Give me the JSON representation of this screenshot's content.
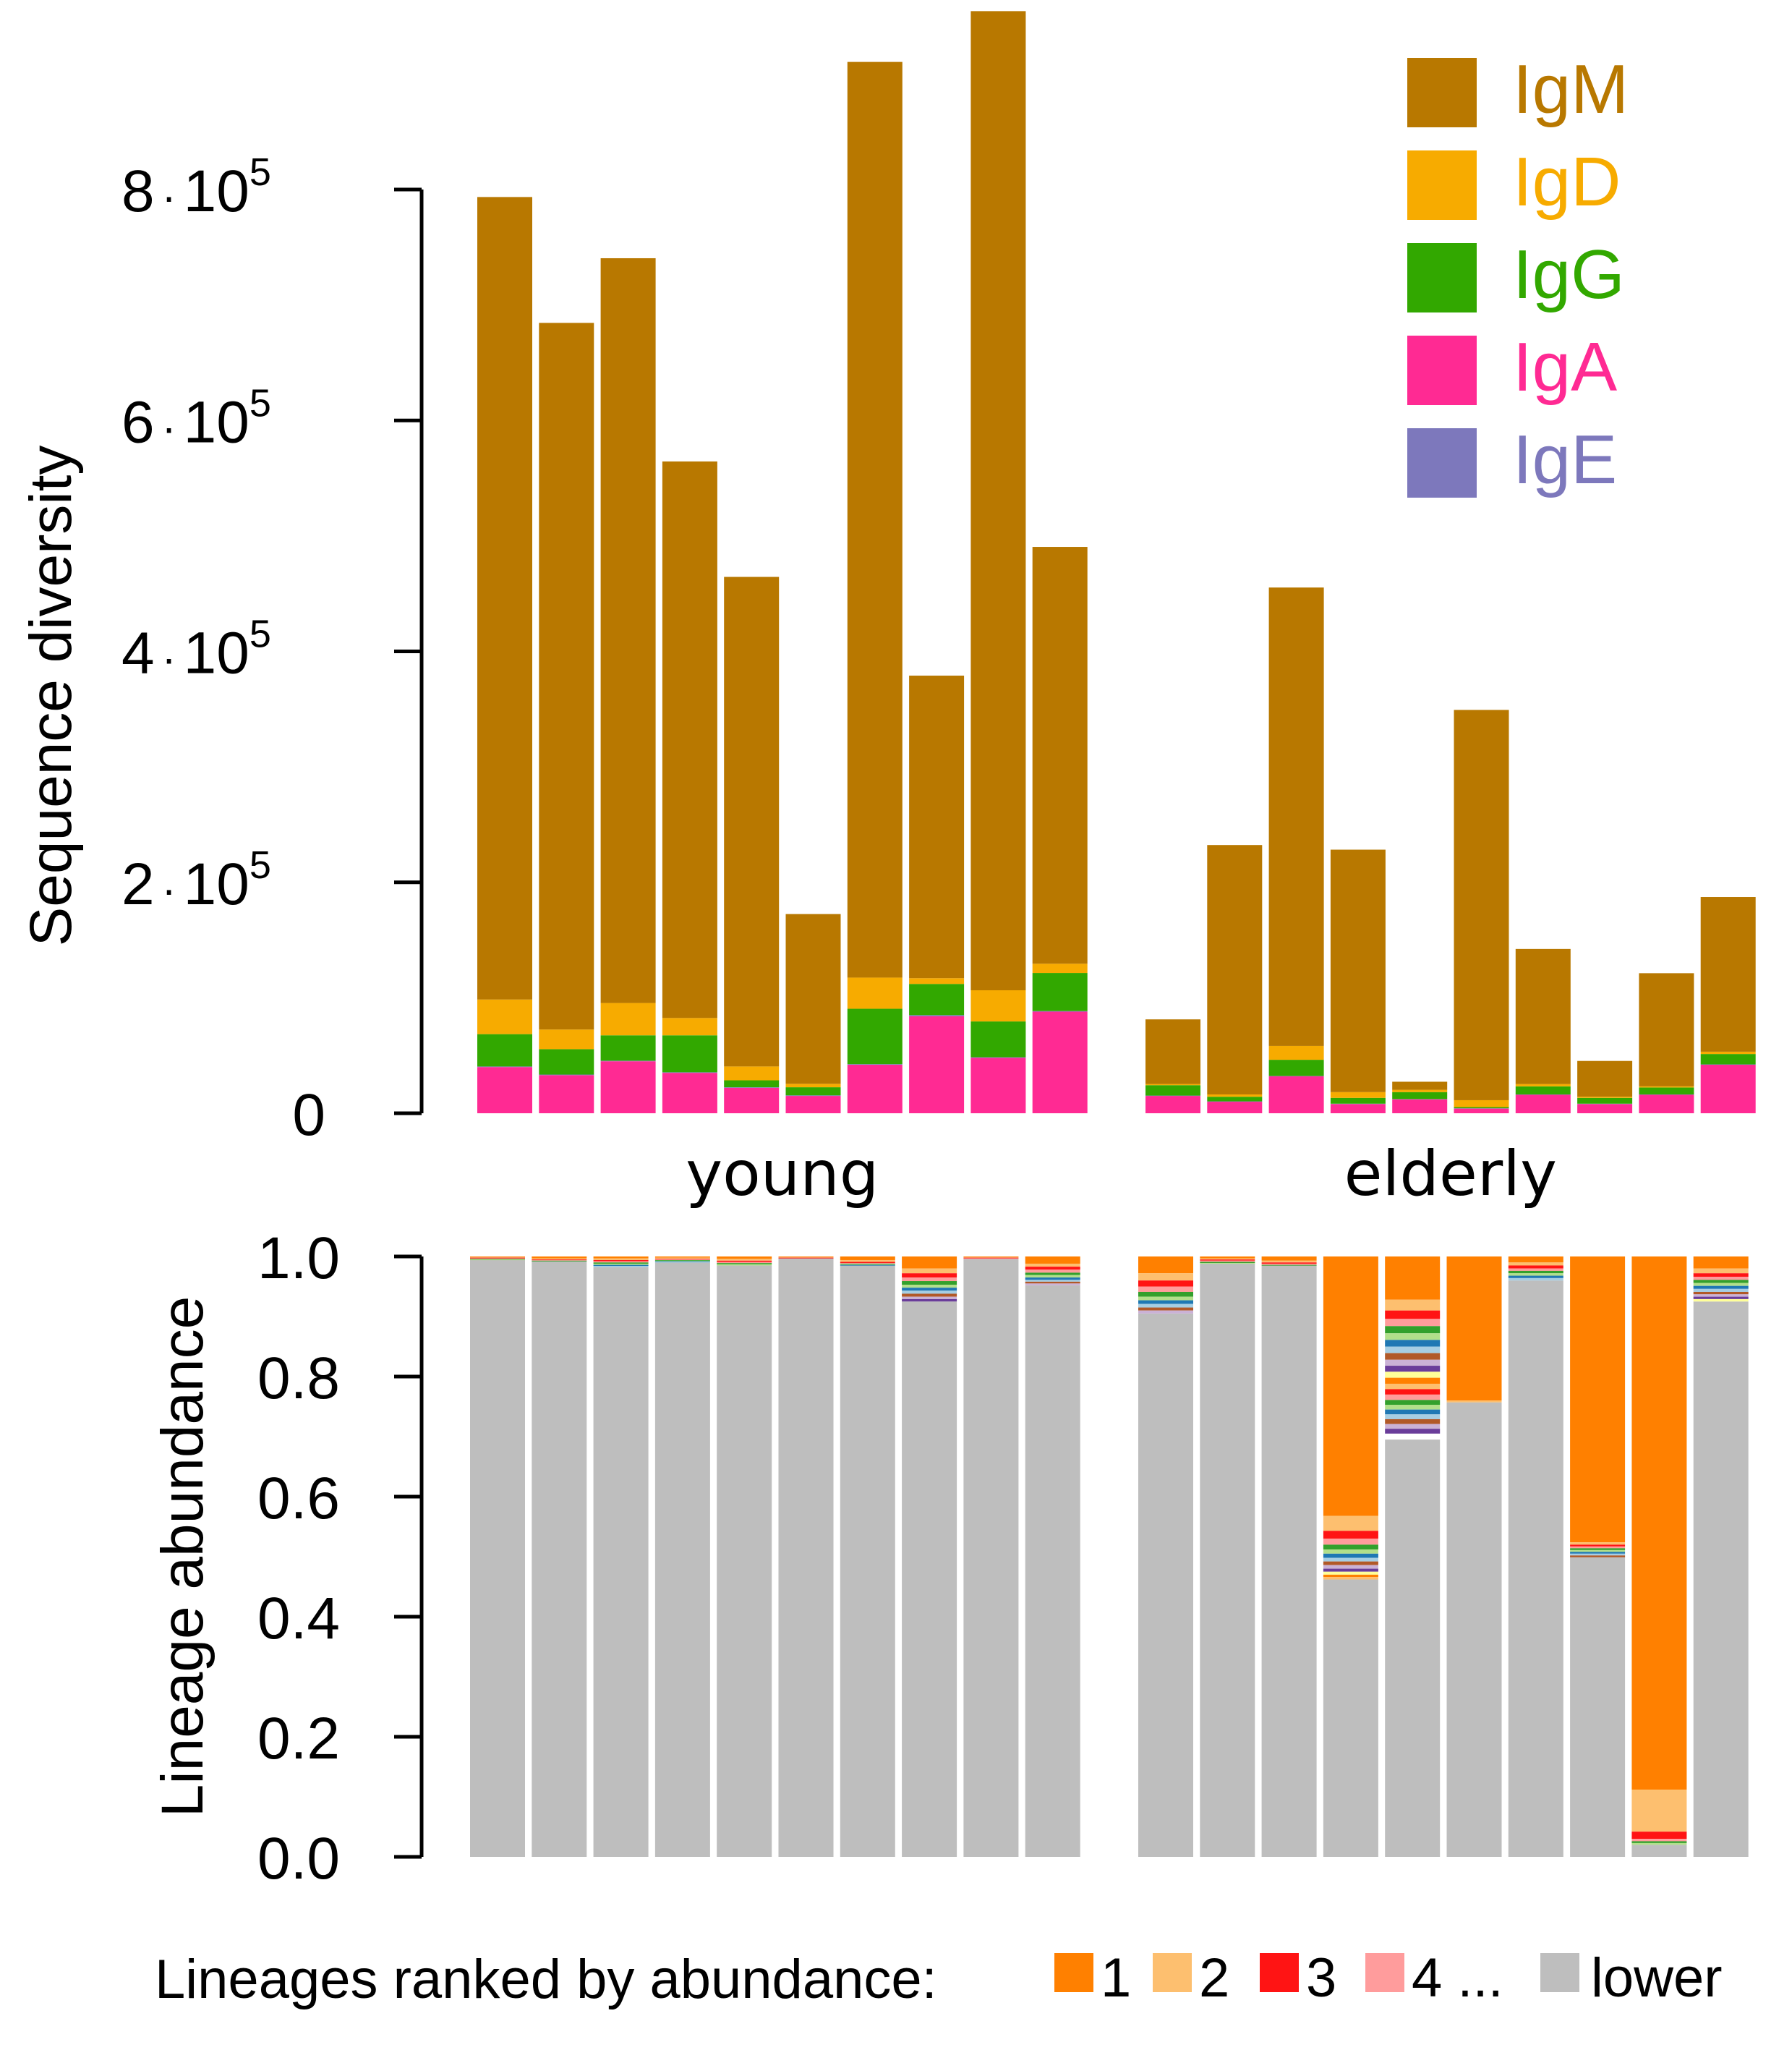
{
  "chart_data": [
    {
      "type": "bar",
      "stacked": true,
      "ylabel": "Sequence diversity",
      "ylim": [
        0,
        950000
      ],
      "yticks": [
        {
          "value": 0,
          "label": "0"
        },
        {
          "value": 200000,
          "mant": "2",
          "exp": "5"
        },
        {
          "value": 400000,
          "mant": "4",
          "exp": "5"
        },
        {
          "value": 600000,
          "mant": "6",
          "exp": "5"
        },
        {
          "value": 800000,
          "mant": "8",
          "exp": "5"
        }
      ],
      "tick_base": "10",
      "groups": [
        {
          "label": "young",
          "start": 0,
          "count": 10
        },
        {
          "label": "elderly",
          "start": 10,
          "count": 10
        }
      ],
      "legend_position": "top-right",
      "series": [
        {
          "name": "IgA",
          "color": "#ff2a93",
          "values": [
            40000,
            33000,
            45000,
            35000,
            22000,
            15000,
            42000,
            84000,
            48000,
            88000,
            15000,
            10000,
            32000,
            8000,
            12000,
            4000,
            16000,
            8000,
            16000,
            42000
          ]
        },
        {
          "name": "IgE",
          "color": "#7d78bc",
          "values": [
            500,
            500,
            500,
            500,
            500,
            500,
            500,
            1000,
            500,
            500,
            300,
            300,
            300,
            300,
            300,
            300,
            300,
            300,
            300,
            300
          ]
        },
        {
          "name": "IgG",
          "color": "#32a800",
          "values": [
            28000,
            22000,
            22000,
            32000,
            6000,
            7000,
            48000,
            27000,
            31000,
            33000,
            9000,
            4000,
            14000,
            5000,
            6000,
            1000,
            7000,
            5000,
            6000,
            9000
          ]
        },
        {
          "name": "IgD",
          "color": "#f7ab00",
          "values": [
            30000,
            17000,
            28000,
            15000,
            12000,
            3000,
            27000,
            5000,
            27000,
            8000,
            1000,
            2000,
            12000,
            5000,
            2000,
            6000,
            2000,
            1000,
            1000,
            2000
          ]
        },
        {
          "name": "IgM",
          "color": "#b87800",
          "values": [
            695000,
            612000,
            645000,
            482000,
            424000,
            147000,
            793000,
            262000,
            848000,
            361000,
            56000,
            216000,
            397000,
            210000,
            7000,
            338000,
            117000,
            31000,
            98000,
            134000
          ]
        }
      ]
    },
    {
      "type": "bar",
      "stacked": true,
      "ylabel": "Lineage abundance",
      "ylim": [
        0,
        1
      ],
      "yticks": [
        "0.0",
        "0.2",
        "0.4",
        "0.6",
        "0.8",
        "1.0"
      ],
      "legend_prefix": "Lineages ranked by abundance:",
      "legend": [
        {
          "label": "1",
          "color": "#ff8000"
        },
        {
          "label": "2",
          "color": "#fdbf6f"
        },
        {
          "label": "3",
          "color": "#ff1414"
        },
        {
          "label": "4 ...",
          "color": "#ff9c9c"
        },
        {
          "label": "lower",
          "color": "#bebebe"
        }
      ],
      "lower_color": "#bebebe",
      "bars": [
        {
          "lower": 0.994,
          "ranks": [
            0.001,
            0.001,
            0.001,
            0.001,
            0.001,
            0.001
          ]
        },
        {
          "lower": 0.992,
          "ranks": [
            0.003,
            0.002,
            0.001,
            0.001,
            0.001
          ]
        },
        {
          "lower": 0.982,
          "ranks": [
            0.003,
            0.003,
            0.002,
            0.002,
            0.002,
            0.002,
            0.002,
            0.002
          ]
        },
        {
          "lower": 0.99,
          "ranks": [
            0.002,
            0.002,
            0.001,
            0.001,
            0.001,
            0.001,
            0.001,
            0.001
          ]
        },
        {
          "lower": 0.985,
          "ranks": [
            0.004,
            0.003,
            0.002,
            0.002,
            0.002,
            0.002
          ]
        },
        {
          "lower": 0.997,
          "ranks": [
            0.001,
            0.001,
            0.001
          ]
        },
        {
          "lower": 0.985,
          "ranks": [
            0.006,
            0.003,
            0.002,
            0.001,
            0.001,
            0.001,
            0.001
          ]
        },
        {
          "lower": 0.925,
          "ranks": [
            0.02,
            0.008,
            0.007,
            0.006,
            0.006,
            0.005,
            0.005,
            0.005,
            0.005,
            0.004,
            0.004
          ]
        },
        {
          "lower": 0.996,
          "ranks": [
            0.001,
            0.001,
            0.001,
            0.001
          ]
        },
        {
          "lower": 0.952,
          "ranks": [
            0.012,
            0.005,
            0.005,
            0.005,
            0.004,
            0.004,
            0.004,
            0.003,
            0.003,
            0.003
          ]
        },
        {
          "lower": 0.905,
          "ranks": [
            0.028,
            0.012,
            0.01,
            0.009,
            0.008,
            0.006,
            0.006,
            0.006,
            0.005,
            0.005
          ]
        },
        {
          "lower": 0.988,
          "ranks": [
            0.003,
            0.002,
            0.002,
            0.002,
            0.002,
            0.001
          ]
        },
        {
          "lower": 0.985,
          "ranks": [
            0.007,
            0.003,
            0.002,
            0.002,
            0.001
          ]
        },
        {
          "lower": 0.462,
          "ranks": [
            0.432,
            0.025,
            0.013,
            0.01,
            0.008,
            0.007,
            0.007,
            0.006,
            0.006,
            0.006,
            0.005,
            0.005,
            0.004,
            0.004
          ]
        },
        {
          "lower": 0.695,
          "ranks": [
            0.072,
            0.018,
            0.014,
            0.012,
            0.012,
            0.011,
            0.011,
            0.011,
            0.011,
            0.01,
            0.01,
            0.01,
            0.01,
            0.009,
            0.009,
            0.009,
            0.008,
            0.008,
            0.008,
            0.008,
            0.008,
            0.008,
            0.008
          ]
        },
        {
          "lower": 0.757,
          "ranks": [
            0.24,
            0.003
          ]
        },
        {
          "lower": 0.96,
          "ranks": [
            0.01,
            0.005,
            0.005,
            0.004,
            0.004,
            0.004,
            0.004,
            0.004
          ]
        },
        {
          "lower": 0.502,
          "ranks": [
            0.476,
            0.004,
            0.003,
            0.003,
            0.003,
            0.003,
            0.003,
            0.003,
            0.003
          ]
        },
        {
          "lower": 0.02,
          "ranks": [
            0.888,
            0.07,
            0.012,
            0.004,
            0.003,
            0.003
          ]
        },
        {
          "lower": 0.925,
          "ranks": [
            0.02,
            0.008,
            0.006,
            0.005,
            0.005,
            0.005,
            0.005,
            0.005,
            0.004,
            0.004,
            0.004,
            0.004
          ]
        }
      ]
    }
  ],
  "palette": [
    "#ff8000",
    "#fdbf6f",
    "#ff1414",
    "#ff9c9c",
    "#33a02c",
    "#b2df8a",
    "#1f78b4",
    "#a6cee3",
    "#b15928",
    "#cab2d6",
    "#6a3d9a",
    "#ffff99"
  ]
}
